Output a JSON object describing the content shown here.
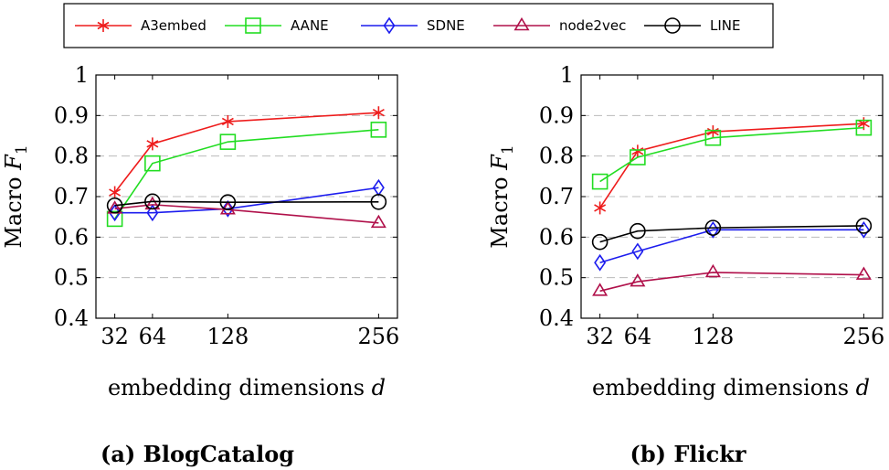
{
  "legend": [
    {
      "name": "A3embed",
      "color": "#ee1c1c",
      "marker": "star"
    },
    {
      "name": "AANE",
      "color": "#22dd22",
      "marker": "square"
    },
    {
      "name": "SDNE",
      "color": "#1c1cee",
      "marker": "diamond"
    },
    {
      "name": "node2vec",
      "color": "#b0104a",
      "marker": "triangle"
    },
    {
      "name": "LINE",
      "color": "#000000",
      "marker": "circle"
    }
  ],
  "chart_data": [
    {
      "type": "line",
      "caption": "(a) BlogCatalog",
      "xlabel_text": "embedding dimensions ",
      "xlabel_var": "d",
      "ylabel_text": "Macro ",
      "ylabel_var": "F",
      "ylabel_sub": "1",
      "x": [
        32,
        64,
        128,
        256
      ],
      "xticks": [
        "32",
        "64",
        "128",
        "256"
      ],
      "ylim": [
        0.4,
        1
      ],
      "yticks": [
        "0.4",
        "0.5",
        "0.6",
        "0.7",
        "0.8",
        "0.9",
        "1"
      ],
      "grid": "horizontal dashed",
      "series": [
        {
          "name": "A3embed",
          "values": [
            0.71,
            0.83,
            0.885,
            0.907
          ]
        },
        {
          "name": "AANE",
          "values": [
            0.645,
            0.782,
            0.835,
            0.865
          ]
        },
        {
          "name": "SDNE",
          "values": [
            0.66,
            0.66,
            0.67,
            0.722
          ]
        },
        {
          "name": "node2vec",
          "values": [
            0.67,
            0.68,
            0.668,
            0.635
          ]
        },
        {
          "name": "LINE",
          "values": [
            0.678,
            0.688,
            0.686,
            0.687
          ]
        }
      ]
    },
    {
      "type": "line",
      "caption": "(b) Flickr",
      "xlabel_text": "embedding dimensions ",
      "xlabel_var": "d",
      "ylabel_text": "Macro ",
      "ylabel_var": "F",
      "ylabel_sub": "1",
      "x": [
        32,
        64,
        128,
        256
      ],
      "xticks": [
        "32",
        "64",
        "128",
        "256"
      ],
      "ylim": [
        0.4,
        1
      ],
      "yticks": [
        "0.4",
        "0.5",
        "0.6",
        "0.7",
        "0.8",
        "0.9",
        "1"
      ],
      "grid": "horizontal dashed",
      "series": [
        {
          "name": "A3embed",
          "values": [
            0.672,
            0.812,
            0.86,
            0.88
          ]
        },
        {
          "name": "AANE",
          "values": [
            0.737,
            0.797,
            0.845,
            0.87
          ]
        },
        {
          "name": "SDNE",
          "values": [
            0.537,
            0.565,
            0.618,
            0.618
          ]
        },
        {
          "name": "node2vec",
          "values": [
            0.467,
            0.49,
            0.513,
            0.507
          ]
        },
        {
          "name": "LINE",
          "values": [
            0.588,
            0.615,
            0.623,
            0.628
          ]
        }
      ]
    }
  ]
}
